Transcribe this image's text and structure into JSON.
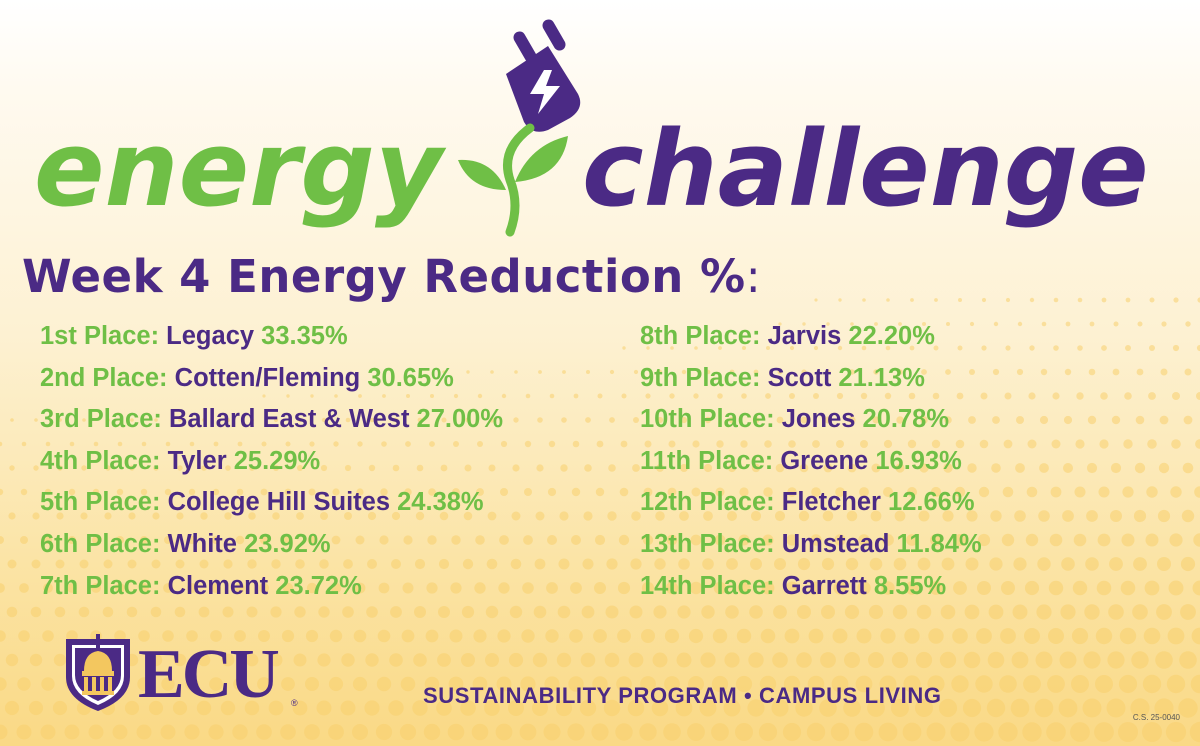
{
  "logo": {
    "word1": "energy",
    "word2": "challenge"
  },
  "heading": {
    "text": "Week 4 Energy Reduction %",
    "colon": ":"
  },
  "rankings": [
    {
      "place": "1st Place:",
      "name": "Legacy",
      "pct": "33.35%"
    },
    {
      "place": "2nd Place:",
      "name": "Cotten/Fleming",
      "pct": "30.65%"
    },
    {
      "place": "3rd Place:",
      "name": "Ballard East & West",
      "pct": "27.00%"
    },
    {
      "place": "4th Place:",
      "name": "Tyler",
      "pct": "25.29%"
    },
    {
      "place": "5th Place:",
      "name": "College Hill Suites",
      "pct": "24.38%"
    },
    {
      "place": "6th Place:",
      "name": "White",
      "pct": "23.92%"
    },
    {
      "place": "7th Place:",
      "name": "Clement",
      "pct": "23.72%"
    },
    {
      "place": "8th Place:",
      "name": "Jarvis",
      "pct": "22.20%"
    },
    {
      "place": "9th Place:",
      "name": "Scott",
      "pct": "21.13%"
    },
    {
      "place": "10th Place:",
      "name": "Jones",
      "pct": "20.78%"
    },
    {
      "place": "11th Place:",
      "name": "Greene",
      "pct": "16.93%"
    },
    {
      "place": "12th Place:",
      "name": "Fletcher",
      "pct": "12.66%"
    },
    {
      "place": "13th Place:",
      "name": " Umstead",
      "pct": "11.84%"
    },
    {
      "place": "14th Place:",
      "name": "Garrett",
      "pct": "8.55%"
    }
  ],
  "brand": {
    "name": "ECU",
    "registered": "®",
    "emblem_icon": "ecu-cupola-shield-icon"
  },
  "footer": {
    "text": "SUSTAINABILITY PROGRAM • CAMPUS LIVING"
  },
  "code": "C.S. 25-0040",
  "colors": {
    "purple": "#4b2a85",
    "green": "#6fbf46",
    "background_light": "#fffaf0",
    "background_warm": "#fad985"
  }
}
